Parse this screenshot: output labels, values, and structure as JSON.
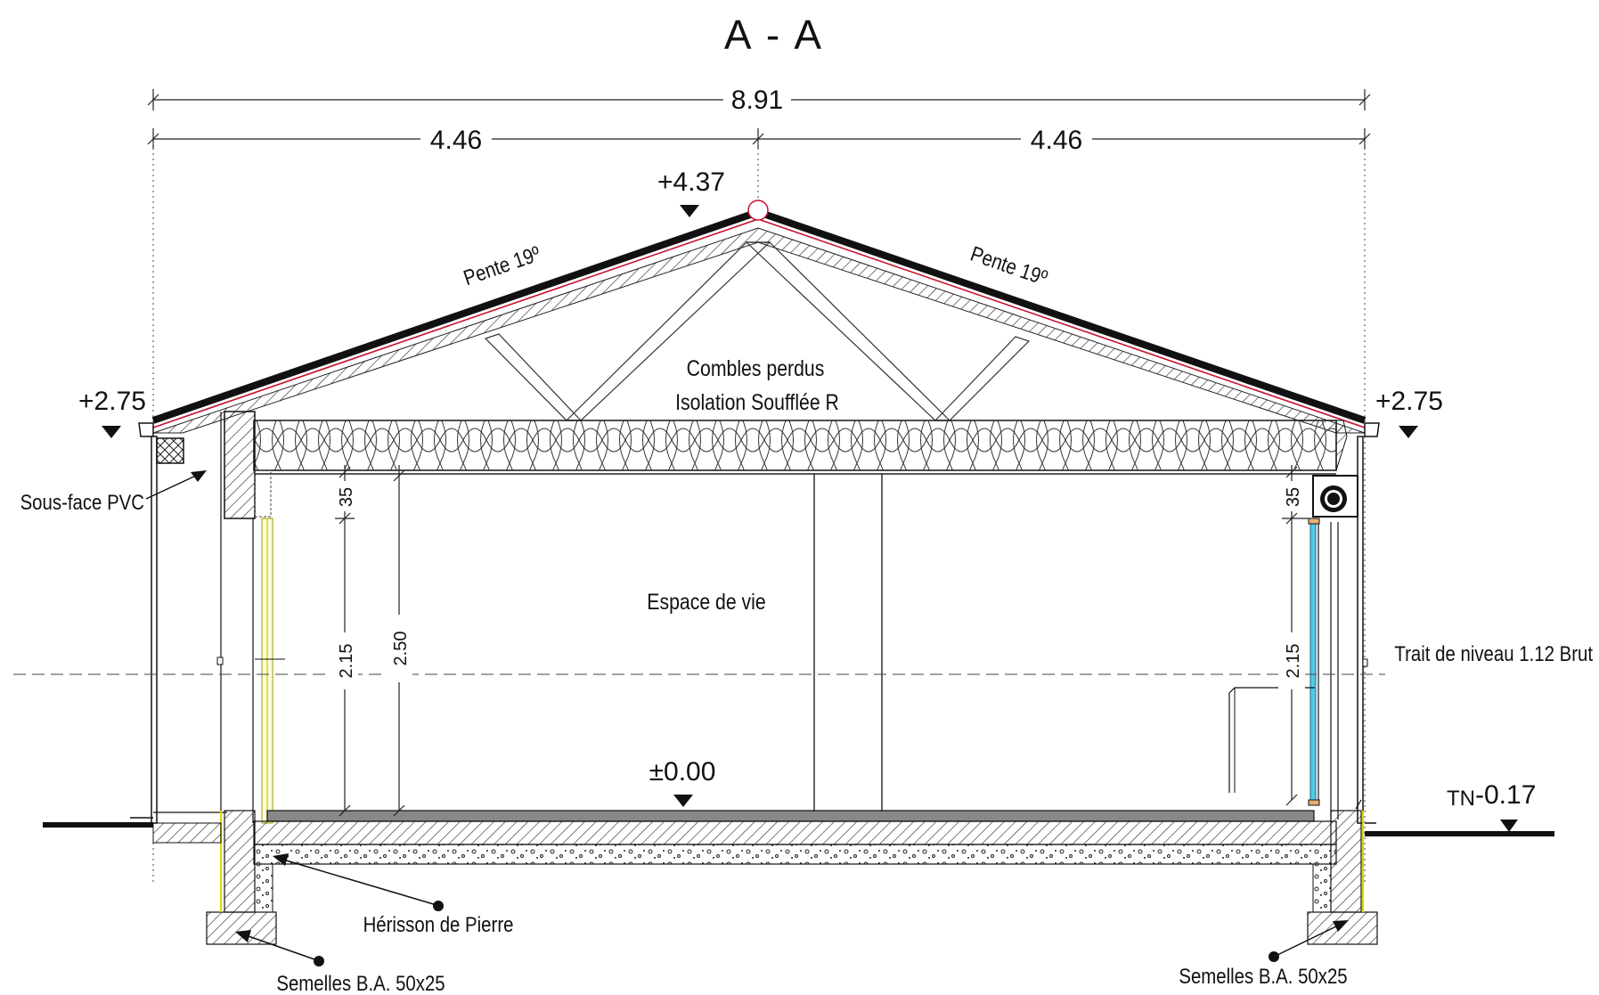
{
  "title": "A - A",
  "dimensions": {
    "overall": "8.91",
    "half_left": "4.46",
    "half_right": "4.46"
  },
  "levels": {
    "ridge": "+4.37",
    "eave_left": "+2.75",
    "eave_right": "+2.75",
    "floor": "±0.00",
    "ground_prefix": "TN",
    "ground": "-0.17"
  },
  "roof": {
    "slope_left": "Pente 19º",
    "slope_right": "Pente 19º"
  },
  "attic": {
    "line1": "Combles perdus",
    "line2": "Isolation Soufflée R"
  },
  "room": {
    "label": "Espace de vie"
  },
  "vertical_dims": {
    "left_top": "35",
    "left_low": "2.15",
    "left_ceiling": "2.50",
    "right_top": "35",
    "right_low": "2.15"
  },
  "annotations": {
    "soffit": "Sous-face PVC",
    "level_line": "Trait de niveau 1.12 Brut",
    "hardcore": "Hérisson de Pierre",
    "footing_left": "Semelles B.A. 50x25",
    "footing_right": "Semelles B.A. 50x25"
  },
  "colors": {
    "line": "#1a1a1a",
    "roof_edge": "#c8102e",
    "glazing": "#56c8e6",
    "wall_yellow": "#d8d800"
  }
}
